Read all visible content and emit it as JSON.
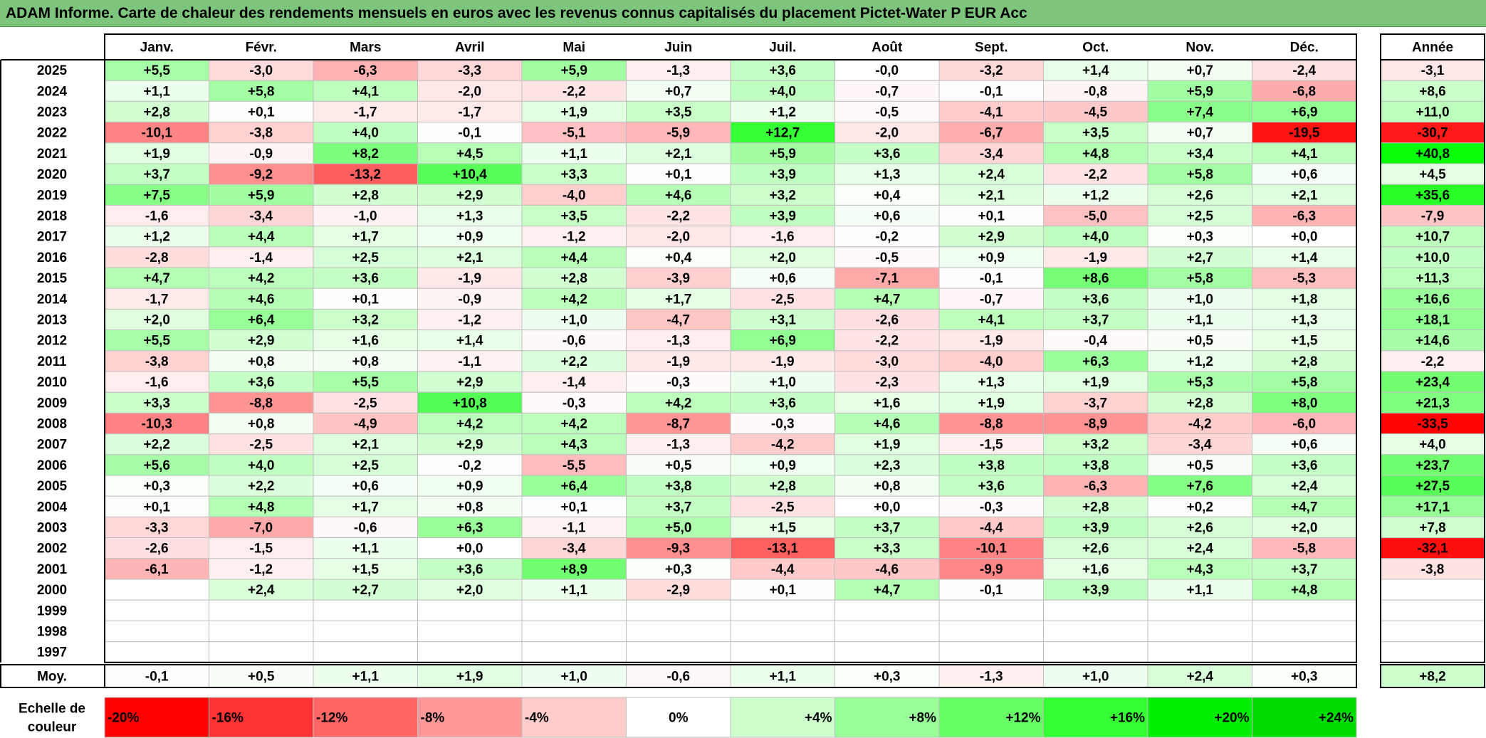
{
  "title": "ADAM Informe. Carte de chaleur des rendements mensuels en euros avec les revenus connus capitalisés du placement Pictet-Water P EUR Acc",
  "chart_data": {
    "type": "heatmap",
    "months": [
      "Janv.",
      "Févr.",
      "Mars",
      "Avril",
      "Mai",
      "Juin",
      "Juil.",
      "Août",
      "Sept.",
      "Oct.",
      "Nov.",
      "Déc."
    ],
    "year_header": "Année",
    "rows": [
      {
        "year": "2025",
        "values": [
          "+5,5",
          "-3,0",
          "-6,3",
          "-3,3",
          "+5,9",
          "-1,3",
          "+3,6",
          "-0,0",
          "-3,2",
          "+1,4",
          "+0,7",
          "-2,4"
        ],
        "annual": "-3,1"
      },
      {
        "year": "2024",
        "values": [
          "+1,1",
          "+5,8",
          "+4,1",
          "-2,0",
          "-2,2",
          "+0,7",
          "+4,0",
          "-0,7",
          "-0,1",
          "-0,8",
          "+5,9",
          "-6,8"
        ],
        "annual": "+8,6"
      },
      {
        "year": "2023",
        "values": [
          "+2,8",
          "+0,1",
          "-1,7",
          "-1,7",
          "+1,9",
          "+3,5",
          "+1,2",
          "-0,5",
          "-4,1",
          "-4,5",
          "+7,4",
          "+6,9"
        ],
        "annual": "+11,0"
      },
      {
        "year": "2022",
        "values": [
          "-10,1",
          "-3,8",
          "+4,0",
          "-0,1",
          "-5,1",
          "-5,9",
          "+12,7",
          "-2,0",
          "-6,7",
          "+3,5",
          "+0,7",
          "-19,5"
        ],
        "annual": "-30,7"
      },
      {
        "year": "2021",
        "values": [
          "+1,9",
          "-0,9",
          "+8,2",
          "+4,5",
          "+1,1",
          "+2,1",
          "+5,9",
          "+3,6",
          "-3,4",
          "+4,8",
          "+3,4",
          "+4,1"
        ],
        "annual": "+40,8"
      },
      {
        "year": "2020",
        "values": [
          "+3,7",
          "-9,2",
          "-13,2",
          "+10,4",
          "+3,3",
          "+0,1",
          "+3,9",
          "+1,3",
          "+2,4",
          "-2,2",
          "+5,8",
          "+0,6"
        ],
        "annual": "+4,5"
      },
      {
        "year": "2019",
        "values": [
          "+7,5",
          "+5,9",
          "+2,8",
          "+2,9",
          "-4,0",
          "+4,6",
          "+3,2",
          "+0,4",
          "+2,1",
          "+1,2",
          "+2,6",
          "+2,1"
        ],
        "annual": "+35,6"
      },
      {
        "year": "2018",
        "values": [
          "-1,6",
          "-3,4",
          "-1,0",
          "+1,3",
          "+3,5",
          "-2,2",
          "+3,9",
          "+0,6",
          "+0,1",
          "-5,0",
          "+2,5",
          "-6,3"
        ],
        "annual": "-7,9"
      },
      {
        "year": "2017",
        "values": [
          "+1,2",
          "+4,4",
          "+1,7",
          "+0,9",
          "-1,2",
          "-2,0",
          "-1,6",
          "-0,2",
          "+2,9",
          "+4,0",
          "+0,3",
          "+0,0"
        ],
        "annual": "+10,7"
      },
      {
        "year": "2016",
        "values": [
          "-2,8",
          "-1,4",
          "+2,5",
          "+2,1",
          "+4,4",
          "+0,4",
          "+2,0",
          "-0,5",
          "+0,9",
          "-1,9",
          "+2,7",
          "+1,4"
        ],
        "annual": "+10,0"
      },
      {
        "year": "2015",
        "values": [
          "+4,7",
          "+4,2",
          "+3,6",
          "-1,9",
          "+2,8",
          "-3,9",
          "+0,6",
          "-7,1",
          "-0,1",
          "+8,6",
          "+5,8",
          "-5,3"
        ],
        "annual": "+11,3"
      },
      {
        "year": "2014",
        "values": [
          "-1,7",
          "+4,6",
          "+0,1",
          "-0,9",
          "+4,2",
          "+1,7",
          "-2,5",
          "+4,7",
          "-0,7",
          "+3,6",
          "+1,0",
          "+1,8"
        ],
        "annual": "+16,6"
      },
      {
        "year": "2013",
        "values": [
          "+2,0",
          "+6,4",
          "+3,2",
          "-1,2",
          "+1,0",
          "-4,7",
          "+3,1",
          "-2,6",
          "+4,1",
          "+3,7",
          "+1,1",
          "+1,3"
        ],
        "annual": "+18,1"
      },
      {
        "year": "2012",
        "values": [
          "+5,5",
          "+2,9",
          "+1,6",
          "+1,4",
          "-0,6",
          "-1,3",
          "+6,9",
          "-2,2",
          "-1,9",
          "-0,4",
          "+0,5",
          "+1,5"
        ],
        "annual": "+14,6"
      },
      {
        "year": "2011",
        "values": [
          "-3,8",
          "+0,8",
          "+0,8",
          "-1,1",
          "+2,2",
          "-1,9",
          "-1,9",
          "-3,0",
          "-4,0",
          "+6,3",
          "+1,2",
          "+2,8"
        ],
        "annual": "-2,2"
      },
      {
        "year": "2010",
        "values": [
          "-1,6",
          "+3,6",
          "+5,5",
          "+2,9",
          "-1,4",
          "-0,3",
          "+1,0",
          "-2,3",
          "+1,3",
          "+1,9",
          "+5,3",
          "+5,8"
        ],
        "annual": "+23,4"
      },
      {
        "year": "2009",
        "values": [
          "+3,3",
          "-8,8",
          "-2,5",
          "+10,8",
          "-0,3",
          "+4,2",
          "+3,6",
          "+1,6",
          "+1,9",
          "-3,7",
          "+2,8",
          "+8,0"
        ],
        "annual": "+21,3"
      },
      {
        "year": "2008",
        "values": [
          "-10,3",
          "+0,8",
          "-4,9",
          "+4,2",
          "+4,2",
          "-8,7",
          "-0,3",
          "+4,6",
          "-8,8",
          "-8,9",
          "-4,2",
          "-6,0"
        ],
        "annual": "-33,5"
      },
      {
        "year": "2007",
        "values": [
          "+2,2",
          "-2,5",
          "+2,1",
          "+2,9",
          "+4,3",
          "-1,3",
          "-4,2",
          "+1,9",
          "-1,5",
          "+3,2",
          "-3,4",
          "+0,6"
        ],
        "annual": "+4,0"
      },
      {
        "year": "2006",
        "values": [
          "+5,6",
          "+4,0",
          "+2,5",
          "-0,2",
          "-5,5",
          "+0,5",
          "+0,9",
          "+2,3",
          "+3,8",
          "+3,8",
          "+0,5",
          "+3,6"
        ],
        "annual": "+23,7"
      },
      {
        "year": "2005",
        "values": [
          "+0,3",
          "+2,2",
          "+0,6",
          "+0,9",
          "+6,4",
          "+3,8",
          "+2,8",
          "+0,8",
          "+3,6",
          "-6,3",
          "+7,6",
          "+2,4"
        ],
        "annual": "+27,5"
      },
      {
        "year": "2004",
        "values": [
          "+0,1",
          "+4,8",
          "+1,7",
          "+0,8",
          "+0,1",
          "+3,7",
          "-2,5",
          "+0,0",
          "-0,3",
          "+2,8",
          "+0,2",
          "+4,7"
        ],
        "annual": "+17,1"
      },
      {
        "year": "2003",
        "values": [
          "-3,3",
          "-7,0",
          "-0,6",
          "+6,3",
          "-1,1",
          "+5,0",
          "+1,5",
          "+3,7",
          "-4,4",
          "+3,9",
          "+2,6",
          "+2,0"
        ],
        "annual": "+7,8"
      },
      {
        "year": "2002",
        "values": [
          "-2,6",
          "-1,5",
          "+1,1",
          "+0,0",
          "-3,4",
          "-9,3",
          "-13,1",
          "+3,3",
          "-10,1",
          "+2,6",
          "+2,4",
          "-5,8"
        ],
        "annual": "-32,1"
      },
      {
        "year": "2001",
        "values": [
          "-6,1",
          "-1,2",
          "+1,5",
          "+3,6",
          "+8,9",
          "+0,3",
          "-4,4",
          "-4,6",
          "-9,9",
          "+1,6",
          "+4,3",
          "+3,7"
        ],
        "annual": "-3,8"
      },
      {
        "year": "2000",
        "values": [
          "",
          "+2,4",
          "+2,7",
          "+2,0",
          "+1,1",
          "-2,9",
          "+0,1",
          "+4,7",
          "-0,1",
          "+3,9",
          "+1,1",
          "+4,8"
        ],
        "annual": ""
      },
      {
        "year": "1999",
        "values": [
          "",
          "",
          "",
          "",
          "",
          "",
          "",
          "",
          "",
          "",
          "",
          ""
        ],
        "annual": ""
      },
      {
        "year": "1998",
        "values": [
          "",
          "",
          "",
          "",
          "",
          "",
          "",
          "",
          "",
          "",
          "",
          ""
        ],
        "annual": ""
      },
      {
        "year": "1997",
        "values": [
          "",
          "",
          "",
          "",
          "",
          "",
          "",
          "",
          "",
          "",
          "",
          ""
        ],
        "annual": ""
      }
    ],
    "average_row": {
      "label": "Moy.",
      "values": [
        "-0,1",
        "+0,5",
        "+1,1",
        "+1,9",
        "+1,0",
        "-0,6",
        "+1,1",
        "+0,3",
        "-1,3",
        "+1,0",
        "+2,4",
        "+0,3"
      ],
      "annual": "+8,2"
    },
    "scale": {
      "label_line1": "Echelle de",
      "label_line2": "couleur",
      "steps": [
        {
          "label": "-20%",
          "value": -20,
          "color": "#ff0000"
        },
        {
          "label": "-16%",
          "value": -16,
          "color": "#ff3333"
        },
        {
          "label": "-12%",
          "value": -12,
          "color": "#ff6666"
        },
        {
          "label": "-8%",
          "value": -8,
          "color": "#ff9999"
        },
        {
          "label": "-4%",
          "value": -4,
          "color": "#ffcccc"
        },
        {
          "label": "0%",
          "value": 0,
          "color": "#ffffff"
        },
        {
          "label": "+4%",
          "value": 4,
          "color": "#ccffcc"
        },
        {
          "label": "+8%",
          "value": 8,
          "color": "#99ff99"
        },
        {
          "label": "+12%",
          "value": 12,
          "color": "#66ff66"
        },
        {
          "label": "+16%",
          "value": 16,
          "color": "#33ff33"
        },
        {
          "label": "+20%",
          "value": 20,
          "color": "#00ee00"
        },
        {
          "label": "+24%",
          "value": 24,
          "color": "#00dd00"
        }
      ]
    },
    "colors": {
      "negative": "#ff0000",
      "neutral": "#ffffff",
      "positive": "#00ff00",
      "title_bar": "#7dc57d"
    }
  }
}
